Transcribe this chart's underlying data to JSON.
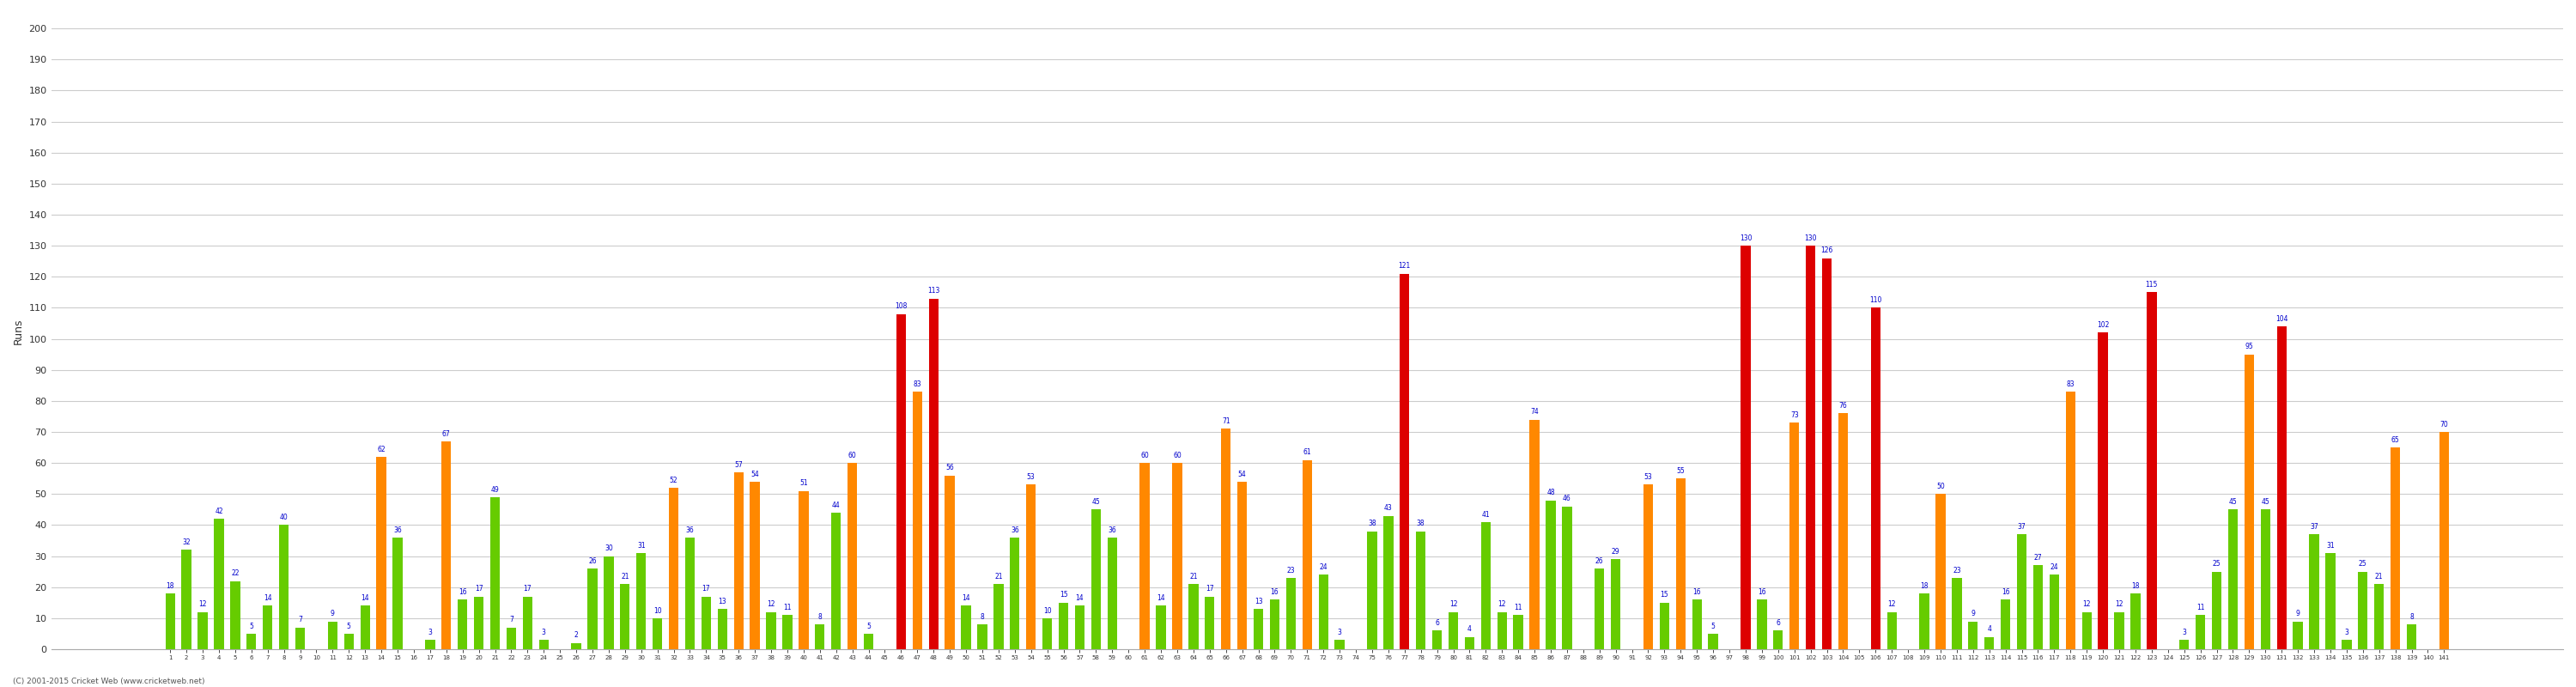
{
  "ylabel": "Runs",
  "background_color": "#ffffff",
  "grid_color": "#cccccc",
  "label_fontsize": 5.5,
  "label_color": "#0000cc",
  "ylim": [
    0,
    205
  ],
  "yticks": [
    0,
    10,
    20,
    30,
    40,
    50,
    60,
    70,
    80,
    90,
    100,
    110,
    120,
    130,
    140,
    150,
    160,
    170,
    180,
    190,
    200
  ],
  "footer": "(C) 2001-2015 Cricket Web (www.cricketweb.net)",
  "innings": [
    1,
    2,
    3,
    4,
    5,
    6,
    7,
    8,
    9,
    10,
    11,
    12,
    13,
    14,
    15,
    16,
    17,
    18,
    19,
    20,
    21,
    22,
    23,
    24,
    25,
    26,
    27,
    28,
    29,
    30,
    31,
    32,
    33,
    34,
    35,
    36,
    37,
    38,
    39,
    40,
    41,
    42,
    43,
    44,
    45,
    46,
    47,
    48,
    49,
    50,
    51,
    52,
    53,
    54,
    55,
    56,
    57,
    58,
    59,
    60,
    61,
    62,
    63,
    64,
    65,
    66,
    67,
    68,
    69,
    70,
    71,
    72,
    73,
    74,
    75,
    76,
    77,
    78,
    79,
    80,
    81,
    82,
    83,
    84,
    85,
    86,
    87,
    88,
    89,
    90,
    91,
    92,
    93,
    94,
    95,
    96,
    97,
    98,
    99,
    100,
    101,
    102,
    103,
    104,
    105,
    106,
    107,
    108,
    109,
    110,
    111,
    112,
    113,
    114,
    115,
    116,
    117,
    118,
    119,
    120,
    121,
    122,
    123,
    124,
    125,
    126,
    127,
    128,
    129,
    130,
    131,
    132,
    133,
    134,
    135,
    136,
    137,
    138,
    139,
    140,
    141
  ],
  "runs": [
    18,
    32,
    12,
    42,
    22,
    5,
    14,
    40,
    7,
    0,
    9,
    5,
    14,
    62,
    36,
    0,
    3,
    67,
    16,
    17,
    49,
    7,
    17,
    3,
    0,
    2,
    26,
    30,
    21,
    31,
    10,
    52,
    36,
    17,
    13,
    57,
    54,
    12,
    11,
    51,
    8,
    44,
    60,
    5,
    0,
    108,
    83,
    113,
    56,
    14,
    8,
    21,
    36,
    53,
    10,
    15,
    14,
    45,
    36,
    0,
    60,
    14,
    60,
    21,
    17,
    71,
    54,
    13,
    16,
    23,
    61,
    24,
    3,
    0,
    38,
    43,
    121,
    38,
    6,
    12,
    4,
    41,
    12,
    11,
    74,
    48,
    46,
    0,
    26,
    29,
    0,
    53,
    15,
    55,
    16,
    5,
    0,
    130,
    16,
    6,
    73,
    130,
    126,
    76,
    0,
    110,
    12,
    0,
    18,
    50,
    23,
    9,
    4,
    16,
    37,
    27,
    24,
    83,
    12,
    102,
    12,
    18,
    115,
    0,
    3,
    11,
    25,
    45,
    95,
    45,
    104,
    9,
    37,
    31,
    3,
    25,
    21,
    65,
    8,
    0,
    70
  ],
  "color_normal": "#66cc00",
  "color_fifty": "#ff8800",
  "color_hundred": "#dd0000"
}
